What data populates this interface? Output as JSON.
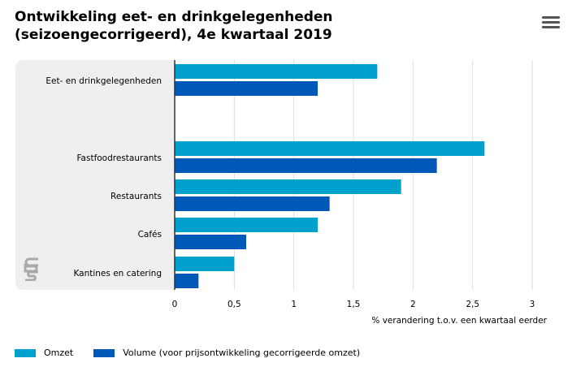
{
  "title": "Ontwikkeling eet- en drinkgelegenheden (seizoengecorrigeerd), 4e kwartaal 2019",
  "icons": {
    "menu": "hamburger-menu-icon",
    "logo": "cbs-logo-icon"
  },
  "colors": {
    "omzet": "#00a1cd",
    "volume": "#0058b8",
    "grid": "#dddddd",
    "panel": "#efefef"
  },
  "chart_data": {
    "type": "bar",
    "orientation": "horizontal",
    "title": "Ontwikkeling eet- en drinkgelegenheden (seizoengecorrigeerd), 4e kwartaal 2019",
    "xlabel": "% verandering t.o.v. een kwartaal eerder",
    "ylabel": "",
    "xlim": [
      0,
      3
    ],
    "xticks": [
      0,
      0.5,
      1,
      1.5,
      2,
      2.5,
      3
    ],
    "xtick_labels": [
      "0",
      "0,5",
      "1",
      "1,5",
      "2",
      "2,5",
      "3"
    ],
    "categories": [
      "Eet- en drinkgelegenheden",
      "",
      "Fastfoodrestaurants",
      "Restaurants",
      "Cafés",
      "Kantines en catering"
    ],
    "series": [
      {
        "name": "Omzet",
        "values": [
          1.7,
          null,
          2.6,
          1.9,
          1.2,
          0.5
        ]
      },
      {
        "name": "Volume (voor prijsontwikkeling gecorrigeerde omzet)",
        "values": [
          1.2,
          null,
          2.2,
          1.3,
          0.6,
          0.2
        ]
      }
    ],
    "grid": true,
    "legend": "bottom-left"
  }
}
